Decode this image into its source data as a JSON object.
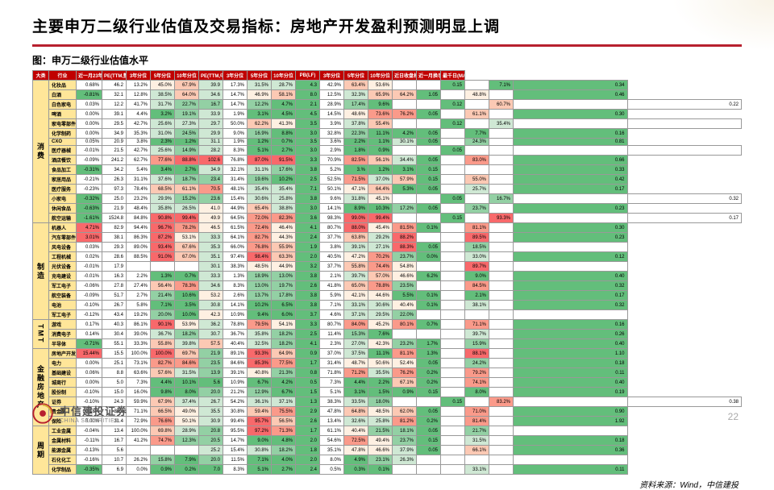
{
  "title": "主要申万二级行业估值及交易指标：房地产开发盈利预测明显上调",
  "subtitle": "图：申万二级行业估值水平",
  "source": "资料来源：Wind，中信建投",
  "page": "22",
  "logo": {
    "cn": "中信建投证券",
    "en": "CHINA  SECURITIES"
  },
  "columns": [
    "大类",
    "行业",
    "近一月23年盈利调整幅度(%)",
    "PE(TTM,整体)",
    "3年分位",
    "5年分位",
    "10年分位",
    "PE(TTM,中位数)",
    "3年分位",
    "5年分位",
    "10年分位",
    "PB(LF)",
    "3年分位",
    "5年分位",
    "10年分位",
    "近日收盘相对近一月均线(%)",
    "近一月换手率变化",
    "最千日(MA5)近一月换手"
  ],
  "groups": [
    {
      "cat": "消费",
      "rows": [
        {
          "ind": "化妆品",
          "adj": "0.68%",
          "v": [
            "46.2",
            "13.2%",
            "45.0%",
            "67.9%",
            "39.9",
            "17.3%",
            "31.5%",
            "28.7%",
            "4.3",
            "42.9%",
            "63.4%",
            "53.6%",
            "",
            "",
            "0.15",
            "",
            "7.1%",
            "0.34"
          ]
        },
        {
          "ind": "白酒",
          "adj": "-0.81%",
          "v": [
            "32.1",
            "12.8%",
            "38.5%",
            "64.0%",
            "34.6",
            "14.7%",
            "46.9%",
            "58.1%",
            "8.0",
            "12.5%",
            "32.3%",
            "65.9%",
            "64.2%",
            "1.05",
            "",
            "48.8%",
            "",
            "0.46"
          ]
        },
        {
          "ind": "白色家电",
          "adj": "0.03%",
          "v": [
            "12.2",
            "41.7%",
            "31.7%",
            "22.7%",
            "16.7",
            "14.7%",
            "12.2%",
            "4.7%",
            "2.1",
            "28.9%",
            "17.4%",
            "9.6%",
            "",
            "",
            "0.12",
            "",
            "60.7%",
            "",
            "0.22"
          ]
        },
        {
          "ind": "啤酒",
          "adj": "0.00%",
          "v": [
            "39.1",
            "4.4%",
            "3.2%",
            "19.1%",
            "33.9",
            "1.9%",
            "3.1%",
            "4.5%",
            "4.5",
            "14.5%",
            "48.6%",
            "73.6%",
            "76.2%",
            "0.05",
            "",
            "61.1%",
            "",
            "0.30"
          ]
        },
        {
          "ind": "家电零部件",
          "adj": "0.00%",
          "v": [
            "29.5",
            "42.7%",
            "25.6%",
            "27.3%",
            "29.7",
            "50.0%",
            "62.2%",
            "41.3%",
            "3.5",
            "3.9%",
            "37.8%",
            "55.4%",
            "",
            "",
            "0.12",
            "",
            "35.4%",
            "",
            ""
          ]
        },
        {
          "ind": "化学制药",
          "adj": "0.00%",
          "v": [
            "34.9",
            "35.3%",
            "31.0%",
            "24.5%",
            "29.9",
            "9.0%",
            "16.9%",
            "8.8%",
            "3.0",
            "32.8%",
            "22.3%",
            "11.1%",
            "4.2%",
            "0.05",
            "",
            "7.7%",
            "",
            "0.16"
          ]
        },
        {
          "ind": "CXO",
          "adj": "0.05%",
          "v": [
            "20.9",
            "3.8%",
            "2.3%",
            "1.2%",
            "31.1",
            "1.9%",
            "1.2%",
            "0.7%",
            "3.5",
            "3.6%",
            "2.2%",
            "1.1%",
            "30.1%",
            "0.05",
            "",
            "24.3%",
            "",
            "0.81"
          ]
        },
        {
          "ind": "医疗器械",
          "adj": "-0.01%",
          "v": [
            "21.5",
            "42.7%",
            "25.6%",
            "14.9%",
            "28.2",
            "8.3%",
            "5.1%",
            "2.7%",
            "3.0",
            "2.9%",
            "1.8%",
            "0.9%",
            "",
            "",
            "0.05",
            "",
            "",
            "",
            ""
          ]
        },
        {
          "ind": "酒店餐饮",
          "adj": "-0.09%",
          "v": [
            "241.2",
            "62.7%",
            "77.6%",
            "88.8%",
            "102.6",
            "76.8%",
            "87.0%",
            "91.5%",
            "3.3",
            "70.9%",
            "82.5%",
            "56.1%",
            "34.4%",
            "0.05",
            "",
            "83.0%",
            "",
            "0.66"
          ]
        },
        {
          "ind": "食品加工",
          "adj": "-0.31%",
          "v": [
            "34.2",
            "5.4%",
            "3.4%",
            "2.7%",
            "34.9",
            "32.1%",
            "31.1%",
            "17.6%",
            "3.8",
            "5.2%",
            "3.%",
            "1.2%",
            "3.1%",
            "0.15",
            "",
            "",
            "",
            "0.33"
          ]
        },
        {
          "ind": "家居用品",
          "adj": "-0.21%",
          "v": [
            "26.3",
            "31.1%",
            "37.6%",
            "18.7%",
            "23.4",
            "31.4%",
            "19.6%",
            "10.2%",
            "2.5",
            "52.5%",
            "71.5%",
            "37.0%",
            "57.9%",
            "0.15",
            "",
            "55.0%",
            "",
            "0.42"
          ]
        },
        {
          "ind": "医疗服务",
          "adj": "-0.23%",
          "v": [
            "97.3",
            "78.4%",
            "68.5%",
            "61.1%",
            "70.5",
            "48.1%",
            "35.4%",
            "35.4%",
            "7.1",
            "50.1%",
            "47.1%",
            "64.4%",
            "5.3%",
            "0.05",
            "",
            "25.7%",
            "",
            "0.17"
          ]
        },
        {
          "ind": "小家电",
          "adj": "-0.32%",
          "v": [
            "25.0",
            "23.2%",
            "29.9%",
            "15.2%",
            "23.6",
            "15.4%",
            "30.6%",
            "25.8%",
            "3.8",
            "9.6%",
            "31.8%",
            "45.1%",
            "",
            "",
            "0.05",
            "",
            "16.7%",
            "",
            "0.32"
          ]
        },
        {
          "ind": "休闲食品",
          "adj": "-0.63%",
          "v": [
            "21.9",
            "48.4%",
            "35.8%",
            "26.5%",
            "41.0",
            "44.9%",
            "65.4%",
            "38.8%",
            "3.0",
            "14.1%",
            "8.9%",
            "10.3%",
            "17.2%",
            "0.05",
            "",
            "23.7%",
            "",
            "0.23"
          ]
        },
        {
          "ind": "航空运输",
          "adj": "-1.61%",
          "v": [
            "1524.8",
            "84.8%",
            "90.8%",
            "99.4%",
            "49.9",
            "64.5%",
            "72.0%",
            "82.3%",
            "3.6",
            "98.3%",
            "99.0%",
            "99.4%",
            "",
            "",
            "0.15",
            "",
            "93.3%",
            "",
            "0.17"
          ]
        }
      ]
    },
    {
      "cat": "制造",
      "rows": [
        {
          "ind": "机器人",
          "adj": "4.71%",
          "v": [
            "82.9",
            "94.4%",
            "96.7%",
            "78.2%",
            "46.5",
            "61.5%",
            "72.4%",
            "46.4%",
            "4.1",
            "80.7%",
            "88.0%",
            "45.4%",
            "81.5%",
            "0.1%",
            "",
            "81.1%",
            "",
            "0.30"
          ]
        },
        {
          "ind": "汽车零部件",
          "adj": "3.01%",
          "v": [
            "38.1",
            "86.3%",
            "87.2%",
            "53.1%",
            "33.3",
            "64.1%",
            "82.7%",
            "44.3%",
            "2.4",
            "37.7%",
            "63.8%",
            "29.2%",
            "88.2%",
            "",
            "",
            "89.5%",
            "",
            "0.23"
          ]
        },
        {
          "ind": "风电设备",
          "adj": "0.03%",
          "v": [
            "29.3",
            "89.0%",
            "93.4%",
            "67.6%",
            "35.3",
            "66.0%",
            "76.8%",
            "55.9%",
            "1.9",
            "3.8%",
            "39.1%",
            "27.1%",
            "88.3%",
            "0.05",
            "",
            "18.5%",
            "",
            ""
          ]
        },
        {
          "ind": "工程机械",
          "adj": "0.02%",
          "v": [
            "28.6",
            "88.5%",
            "91.0%",
            "67.0%",
            "35.1",
            "97.4%",
            "98.4%",
            "63.3%",
            "2.0",
            "40.5%",
            "47.2%",
            "70.2%",
            "23.7%",
            "0.0%",
            "",
            "33.0%",
            "",
            "0.12"
          ]
        },
        {
          "ind": "光伏设备",
          "adj": "-0.01%",
          "v": [
            "17.9",
            "",
            "",
            "",
            "30.1",
            "38.3%",
            "48.5%",
            "44.9%",
            "3.2",
            "37.7%",
            "55.8%",
            "74.4%",
            "54.8%",
            "",
            "",
            "89.7%",
            "",
            ""
          ]
        },
        {
          "ind": "充电建设",
          "adj": "-0.01%",
          "v": [
            "16.3",
            "2.2%",
            "1.3%",
            "0.7%",
            "33.3",
            "1.3%",
            "18.9%",
            "13.0%",
            "3.8",
            "2.1%",
            "39.7%",
            "57.0%",
            "46.6%",
            "6.2%",
            "",
            "9.0%",
            "",
            "0.40"
          ]
        },
        {
          "ind": "军工电子",
          "adj": "-0.06%",
          "v": [
            "27.8",
            "27.4%",
            "56.4%",
            "78.3%",
            "34.6",
            "8.3%",
            "13.0%",
            "19.7%",
            "2.6",
            "41.8%",
            "65.0%",
            "78.8%",
            "23.5%",
            "",
            "",
            "84.5%",
            "",
            "0.32"
          ]
        },
        {
          "ind": "航空装备",
          "adj": "-0.09%",
          "v": [
            "51.7",
            "2.7%",
            "21.4%",
            "10.6%",
            "53.2",
            "2.6%",
            "13.7%",
            "17.8%",
            "3.8",
            "5.9%",
            "42.1%",
            "44.6%",
            "5.5%",
            "0.1%",
            "",
            "2.1%",
            "",
            "0.17"
          ]
        },
        {
          "ind": "电池",
          "adj": "-0.10%",
          "v": [
            "26.7",
            "5.8%",
            "7.1%",
            "3.5%",
            "30.8",
            "14.1%",
            "10.2%",
            "6.5%",
            "3.8",
            "7.1%",
            "33.1%",
            "30.6%",
            "40.4%",
            "0.1%",
            "",
            "38.1%",
            "",
            "0.32"
          ]
        },
        {
          "ind": "军工电子",
          "adj": "-0.12%",
          "v": [
            "43.4",
            "19.2%",
            "20.0%",
            "10.0%",
            "42.3",
            "10.9%",
            "9.4%",
            "6.0%",
            "3.7",
            "4.6%",
            "37.1%",
            "29.5%",
            "22.0%",
            "",
            "",
            "",
            "",
            ""
          ]
        }
      ]
    },
    {
      "cat": "TMT",
      "rows": [
        {
          "ind": "游戏",
          "adj": "0.17%",
          "v": [
            "40.3",
            "86.1%",
            "90.1%",
            "53.9%",
            "36.2",
            "78.8%",
            "79.5%",
            "54.1%",
            "3.3",
            "80.7%",
            "84.0%",
            "45.2%",
            "80.1%",
            "0.7%",
            "",
            "71.1%",
            "",
            "0.16"
          ]
        },
        {
          "ind": "消费电子",
          "adj": "0.14%",
          "v": [
            "30.4",
            "39.0%",
            "36.7%",
            "18.2%",
            "30.7",
            "36.7%",
            "35.8%",
            "18.2%",
            "2.5",
            "11.4%",
            "15.3%",
            "7.6%",
            "",
            "",
            "",
            "39.7%",
            "",
            "0.26"
          ]
        },
        {
          "ind": "半导体",
          "adj": "-0.71%",
          "v": [
            "55.1",
            "33.3%",
            "55.8%",
            "39.8%",
            "57.5",
            "40.4%",
            "32.5%",
            "18.2%",
            "4.1",
            "2.3%",
            "27.0%",
            "42.3%",
            "23.2%",
            "1.7%",
            "",
            "15.9%",
            "",
            "0.40"
          ]
        }
      ]
    },
    {
      "cat": "金融房地产",
      "rows": [
        {
          "ind": "房地产开发",
          "adj": "15.44%",
          "v": [
            "15.5",
            "100.0%",
            "100.0%",
            "69.7%",
            "21.9",
            "89.1%",
            "93.3%",
            "64.9%",
            "0.9",
            "37.0%",
            "37.5%",
            "11.1%",
            "81.1%",
            "1.3%",
            "",
            "88.1%",
            "",
            "1.10"
          ]
        },
        {
          "ind": "电力",
          "adj": "0.00%",
          "v": [
            "25.1",
            "73.1%",
            "82.7%",
            "84.6%",
            "23.5",
            "84.6%",
            "85.3%",
            "77.5%",
            "1.7",
            "31.4%",
            "48.7%",
            "50.6%",
            "52.4%",
            "0.05",
            "",
            "24.2%",
            "",
            "0.18"
          ]
        },
        {
          "ind": "基础建设",
          "adj": "0.06%",
          "v": [
            "8.8",
            "63.6%",
            "57.6%",
            "31.5%",
            "13.9",
            "39.1%",
            "40.8%",
            "21.3%",
            "0.8",
            "71.8%",
            "71.2%",
            "35.5%",
            "76.2%",
            "0.2%",
            "",
            "79.2%",
            "",
            "0.11"
          ]
        },
        {
          "ind": "城商行",
          "adj": "0.00%",
          "v": [
            "5.0",
            "7.3%",
            "4.4%",
            "10.1%",
            "5.6",
            "10.9%",
            "6.7%",
            "4.2%",
            "0.5",
            "7.3%",
            "4.4%",
            "2.2%",
            "67.1%",
            "0.2%",
            "",
            "74.1%",
            "",
            "0.40"
          ]
        },
        {
          "ind": "股份制",
          "adj": "-0.10%",
          "v": [
            "15.0",
            "16.0%",
            "9.8%",
            "8.0%",
            "20.0",
            "21.2%",
            "12.9%",
            "6.7%",
            "1.5",
            "5.1%",
            "3.1%",
            "1.5%",
            "0.9%",
            "0.15",
            "",
            "8.0%",
            "",
            "0.19"
          ]
        },
        {
          "ind": "证券",
          "adj": "-0.10%",
          "v": [
            "24.3",
            "59.9%",
            "67.9%",
            "37.4%",
            "26.7",
            "54.2%",
            "36.1%",
            "37.1%",
            "1.3",
            "38.3%",
            "33.5%",
            "18.0%",
            "",
            "",
            "0.15",
            "",
            "83.2%",
            "",
            "0.38"
          ]
        },
        {
          "ind": "贵金属",
          "adj": "0.18%",
          "v": [
            "34.4",
            "71.1%",
            "66.5%",
            "49.0%",
            "35.5",
            "30.8%",
            "59.4%",
            "75.5%",
            "2.9",
            "47.8%",
            "64.8%",
            "48.5%",
            "62.0%",
            "0.05",
            "",
            "71.0%",
            "",
            "0.90"
          ]
        },
        {
          "ind": "保险",
          "adj": "0.00%",
          "v": [
            "31.4",
            "72.9%",
            "76.6%",
            "50.1%",
            "30.9",
            "99.4%",
            "95.7%",
            "56.5%",
            "2.6",
            "13.4%",
            "32.6%",
            "25.8%",
            "81.2%",
            "0.2%",
            "",
            "81.4%",
            "",
            "1.92"
          ]
        }
      ]
    },
    {
      "cat": "周期",
      "rows": [
        {
          "ind": "工业金属",
          "adj": "-0.04%",
          "v": [
            "13.4",
            "100.0%",
            "69.8%",
            "28.9%",
            "20.8",
            "95.5%",
            "97.2%",
            "71.3%",
            "1.7",
            "61.1%",
            "40.4%",
            "21.5%",
            "18.1%",
            "0.05",
            "",
            "21.7%",
            "",
            ""
          ]
        },
        {
          "ind": "金属材料",
          "adj": "-0.11%",
          "v": [
            "16.7",
            "41.2%",
            "74.7%",
            "12.3%",
            "20.5",
            "14.7%",
            "9.0%",
            "4.8%",
            "2.0",
            "54.6%",
            "72.5%",
            "49.4%",
            "23.7%",
            "0.15",
            "",
            "31.5%",
            "",
            "0.18"
          ]
        },
        {
          "ind": "能源金属",
          "adj": "-0.13%",
          "v": [
            "5.6",
            "",
            "",
            "",
            "25.2",
            "15.4%",
            "30.8%",
            "18.2%",
            "1.8",
            "35.1%",
            "47.8%",
            "46.6%",
            "37.9%",
            "0.05",
            "",
            "66.1%",
            "",
            "0.36"
          ]
        },
        {
          "ind": "石化化工",
          "adj": "-0.16%",
          "v": [
            "10.7",
            "26.2%",
            "15.8%",
            "7.9%",
            "20.0",
            "11.5%",
            "7.1%",
            "4.0%",
            "2.0",
            "8.0%",
            "4.9%",
            "23.1%",
            "26.3%",
            "",
            "",
            "",
            "",
            ""
          ]
        },
        {
          "ind": "化学制品",
          "adj": "-0.35%",
          "v": [
            "6.9",
            "0.0%",
            "0.9%",
            "0.2%",
            "7.0",
            "8.3%",
            "5.1%",
            "2.7%",
            "2.4",
            "0.5%",
            "0.3%",
            "0.1%",
            "",
            "",
            "",
            "33.1%",
            "",
            "0.11"
          ]
        }
      ]
    }
  ]
}
